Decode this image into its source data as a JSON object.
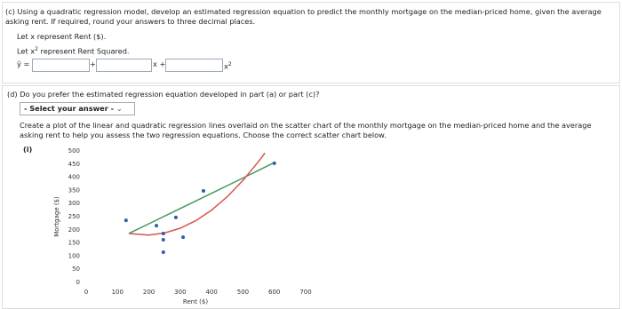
{
  "part_c": {
    "text": "(c) Using a quadratic regression model, develop an estimated regression equation to predict the monthly mortgage on the median-priced home, given the average asking rent. If required, round your answers to three decimal places.",
    "let_x": "Let x represent Rent ($).",
    "let_x2": {
      "before": "Let x",
      "sup": "2",
      "after": " represent Rent Squared."
    },
    "equation": {
      "yhat": "ŷ =",
      "plus": "+",
      "x_plus": "x +",
      "x2": "x",
      "x2_sup": "2"
    }
  },
  "part_d": {
    "text": "(d) Do you prefer the estimated regression equation developed in part (a) or part (c)?",
    "select": "- Select your answer -",
    "instructions": "Create a plot of the linear and quadratic regression lines overlaid on the scatter chart of the monthly mortgage on the median-priced home and the average asking rent to help you assess the two regression equations. Choose the correct scatter chart below.",
    "option": "(i)"
  },
  "chart": {
    "type": "scatter",
    "x_label": "Rent ($)",
    "y_label": "Mortgage ($)",
    "xlim": [
      0,
      700
    ],
    "xticks": [
      0,
      100,
      200,
      300,
      400,
      500,
      600,
      700
    ],
    "ylim": [
      0,
      500
    ],
    "yticks": [
      0,
      50,
      100,
      150,
      200,
      250,
      300,
      350,
      400,
      450,
      500
    ],
    "points": {
      "color": "#2b5ea8",
      "x": [
        127,
        224,
        246,
        246,
        246,
        286,
        309,
        374,
        600
      ],
      "values": [
        236,
        216,
        186,
        162,
        115,
        247,
        172,
        348,
        453
      ]
    },
    "lines": [
      {
        "color": "#3f9a5c",
        "x": [
          136,
          200,
          300,
          400,
          500,
          595
        ],
        "values": [
          186,
          223,
          281,
          339,
          397,
          453
        ]
      },
      {
        "color": "#d9534f",
        "x": [
          136,
          200,
          250,
          300,
          350,
          400,
          450,
          500,
          550,
          570
        ],
        "values": [
          186,
          180,
          188,
          206,
          235,
          275,
          326,
          388,
          460,
          492
        ]
      }
    ]
  }
}
